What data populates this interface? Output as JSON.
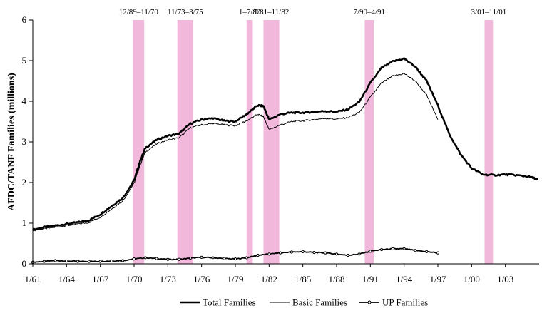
{
  "chart_data": {
    "type": "line",
    "title": "",
    "xlabel": "",
    "ylabel": "AFDC/TANF Families (millions)",
    "xlim": [
      1961,
      2006
    ],
    "ylim": [
      0,
      6
    ],
    "y_ticks": [
      0,
      1,
      2,
      3,
      4,
      5,
      6
    ],
    "x_ticks": [
      {
        "label": "1/61",
        "year": 1961
      },
      {
        "label": "1/64",
        "year": 1964
      },
      {
        "label": "1/67",
        "year": 1967
      },
      {
        "label": "1/70",
        "year": 1970
      },
      {
        "label": "1/73",
        "year": 1973
      },
      {
        "label": "1/76",
        "year": 1976
      },
      {
        "label": "1/79",
        "year": 1979
      },
      {
        "label": "1/82",
        "year": 1982
      },
      {
        "label": "1/85",
        "year": 1985
      },
      {
        "label": "1/88",
        "year": 1988
      },
      {
        "label": "1/91",
        "year": 1991
      },
      {
        "label": "1/94",
        "year": 1994
      },
      {
        "label": "1/97",
        "year": 1997
      },
      {
        "label": "1/00",
        "year": 2000
      },
      {
        "label": "1/03",
        "year": 2003
      }
    ],
    "recessions": [
      {
        "label": "12/89–11/70",
        "start": 1969.9,
        "end": 1970.9
      },
      {
        "label": "11/73–3/75",
        "start": 1973.85,
        "end": 1975.25
      },
      {
        "label": "1–7/80",
        "start": 1980.0,
        "end": 1980.55
      },
      {
        "label": "7/81–11/82",
        "start": 1981.5,
        "end": 1982.9
      },
      {
        "label": "7/90–4/91",
        "start": 1990.5,
        "end": 1991.3
      },
      {
        "label": "3/01–11/01",
        "start": 2001.15,
        "end": 2001.9
      }
    ],
    "recession_color": "#f2b8dc",
    "series": [
      {
        "name": "Total Families",
        "style": "thick",
        "x": [
          1961,
          1962,
          1963,
          1964,
          1965,
          1966,
          1967,
          1968,
          1969,
          1970,
          1970.5,
          1971,
          1972,
          1973,
          1974,
          1975,
          1976,
          1977,
          1978,
          1979,
          1980,
          1981,
          1981.5,
          1982,
          1983,
          1984,
          1985,
          1986,
          1987,
          1988,
          1989,
          1990,
          1991,
          1992,
          1993,
          1994,
          1995,
          1996,
          1997,
          1998,
          1999,
          2000,
          2001,
          2002,
          2003,
          2004,
          2005,
          2005.9
        ],
        "values": [
          0.84,
          0.9,
          0.94,
          0.98,
          1.02,
          1.07,
          1.22,
          1.42,
          1.62,
          2.05,
          2.5,
          2.85,
          3.05,
          3.15,
          3.2,
          3.45,
          3.55,
          3.58,
          3.52,
          3.5,
          3.68,
          3.9,
          3.88,
          3.55,
          3.68,
          3.72,
          3.72,
          3.74,
          3.76,
          3.74,
          3.8,
          3.98,
          4.45,
          4.82,
          4.98,
          5.05,
          4.85,
          4.5,
          3.9,
          3.2,
          2.7,
          2.35,
          2.2,
          2.18,
          2.2,
          2.18,
          2.15,
          2.08
        ]
      },
      {
        "name": "Basic Families",
        "style": "thin",
        "x": [
          1961,
          1962,
          1963,
          1964,
          1965,
          1966,
          1967,
          1968,
          1969,
          1970,
          1970.5,
          1971,
          1972,
          1973,
          1974,
          1975,
          1976,
          1977,
          1978,
          1979,
          1980,
          1981,
          1981.5,
          1982,
          1983,
          1984,
          1985,
          1986,
          1987,
          1988,
          1989,
          1990,
          1991,
          1992,
          1993,
          1994,
          1995,
          1996,
          1997
        ],
        "values": [
          0.82,
          0.86,
          0.9,
          0.94,
          0.98,
          1.02,
          1.15,
          1.35,
          1.55,
          1.98,
          2.4,
          2.75,
          2.95,
          3.05,
          3.1,
          3.35,
          3.42,
          3.45,
          3.42,
          3.4,
          3.52,
          3.68,
          3.62,
          3.3,
          3.42,
          3.5,
          3.52,
          3.55,
          3.58,
          3.56,
          3.6,
          3.72,
          4.1,
          4.45,
          4.62,
          4.68,
          4.5,
          4.15,
          3.55
        ]
      },
      {
        "name": "UP Families",
        "style": "marker",
        "x": [
          1961,
          1962,
          1963,
          1964,
          1965,
          1966,
          1967,
          1968,
          1969,
          1970,
          1971,
          1972,
          1973,
          1974,
          1975,
          1976,
          1977,
          1978,
          1979,
          1980,
          1981,
          1982,
          1983,
          1984,
          1985,
          1986,
          1987,
          1988,
          1989,
          1990,
          1991,
          1992,
          1993,
          1994,
          1995,
          1996,
          1997
        ],
        "values": [
          0.04,
          0.06,
          0.08,
          0.07,
          0.06,
          0.06,
          0.06,
          0.07,
          0.08,
          0.12,
          0.15,
          0.13,
          0.11,
          0.11,
          0.14,
          0.16,
          0.15,
          0.13,
          0.12,
          0.15,
          0.21,
          0.24,
          0.27,
          0.29,
          0.3,
          0.28,
          0.27,
          0.24,
          0.21,
          0.24,
          0.31,
          0.35,
          0.37,
          0.37,
          0.33,
          0.3,
          0.27
        ]
      }
    ],
    "legend": {
      "position": "bottom",
      "entries": [
        "Total Families",
        "Basic Families",
        "UP Families"
      ]
    }
  }
}
